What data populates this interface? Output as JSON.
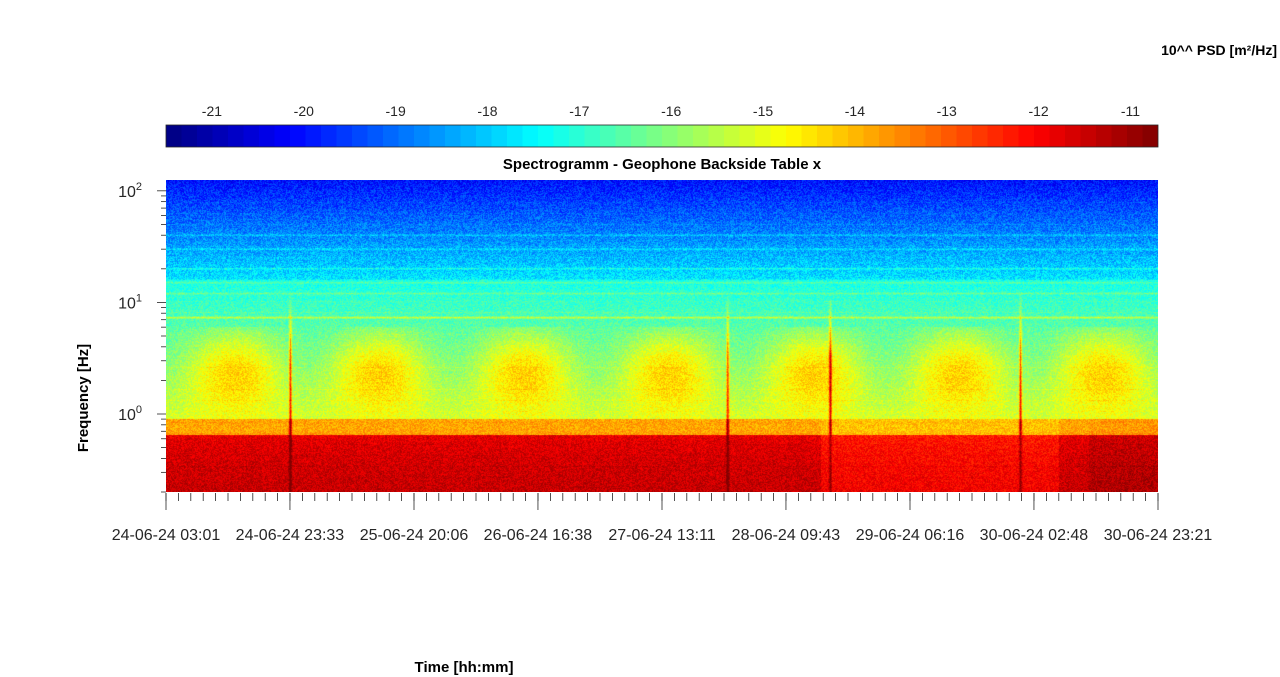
{
  "chart_data": {
    "type": "heatmap",
    "title": "Spectrogramm - Geophone Backside Table x",
    "xlabel": "Time [hh:mm]",
    "ylabel": "Frequency [Hz]",
    "colorbar_label": "10^^ PSD [m²/Hz]",
    "colorbar_ticks": [
      "-21",
      "-20",
      "-19",
      "-18",
      "-17",
      "-16",
      "-15",
      "-14",
      "-13",
      "-12",
      "-11"
    ],
    "colorbar_range": [
      -21.5,
      -10.7
    ],
    "colormap": "jet",
    "colorbar_location": "top",
    "y_scale": "log",
    "y_range_hz": [
      0.2,
      125
    ],
    "y_tick_labels": [
      "10^0",
      "10^1",
      "10^2"
    ],
    "x_range": [
      "24-06-24 03:01",
      "30-06-24 23:21"
    ],
    "x_tick_labels": [
      "24-06-24  03:01",
      "24-06-24  23:33",
      "25-06-24  20:06",
      "26-06-24  16:38",
      "27-06-24  13:11",
      "28-06-24  09:43",
      "29-06-24  06:16",
      "30-06-24  02:48",
      "30-06-24  23:21"
    ],
    "features": {
      "persistent_line_hz": [
        7.3,
        12,
        15,
        20,
        30,
        40
      ],
      "low_frequency_band_hz": [
        0.2,
        0.65
      ],
      "low_frequency_log_psd": -11.8,
      "high_frequency_log_psd": -20,
      "transient_spikes_at": [
        "24-06-24 23:33",
        "28-06-24 00:00",
        "28-06-24 17:00",
        "30-06-24 00:30"
      ]
    }
  }
}
